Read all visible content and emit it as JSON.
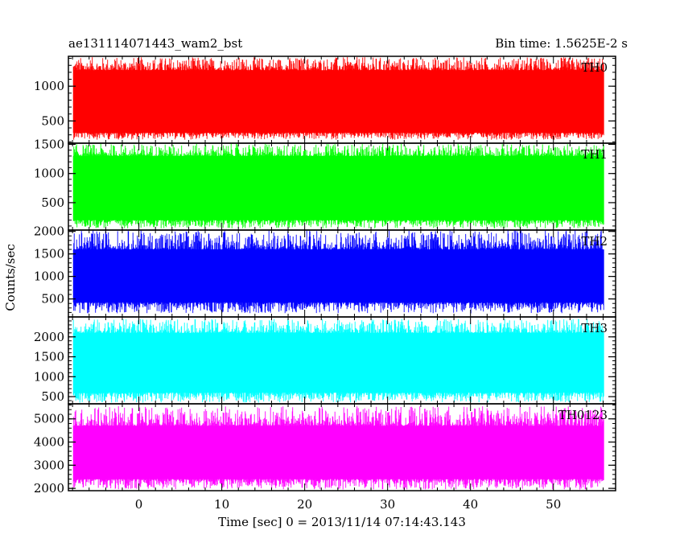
{
  "header": {
    "left": "ae131114071443_wam2_bst",
    "right": "Bin time: 1.5625E-2 s"
  },
  "chart_data": {
    "type": "line",
    "title": "ae131114071443_wam2_bst",
    "subtitle": "Bin time: 1.5625E-2 s",
    "xlabel": "Time [sec] 0 = 2013/11/14 07:14:43.143",
    "ylabel": "Counts/sec",
    "xlim": [
      -8.5,
      57.5
    ],
    "x_data_range": [
      -7.9,
      56.1
    ],
    "bin_time_s": 0.015625,
    "x_ticks": [
      0,
      10,
      20,
      30,
      40,
      50
    ],
    "grid": false,
    "legend": "none",
    "panels": [
      {
        "name": "TH0",
        "color": "#ff0000",
        "ylim": [
          180,
          1430
        ],
        "y_ticks": [
          500,
          1000
        ],
        "mean": 780,
        "noise_range": [
          230,
          1420
        ],
        "typical_range": [
          330,
          1230
        ]
      },
      {
        "name": "TH1",
        "color": "#00ff00",
        "ylim": [
          30,
          1520
        ],
        "y_ticks": [
          500,
          1000,
          1500
        ],
        "mean": 710,
        "noise_range": [
          60,
          1510
        ],
        "typical_range": [
          200,
          1300
        ]
      },
      {
        "name": "TH2",
        "color": "#0000ff",
        "ylim": [
          100,
          2030
        ],
        "y_ticks": [
          500,
          1000,
          1500,
          2000
        ],
        "mean": 930,
        "noise_range": [
          180,
          2030
        ],
        "typical_range": [
          420,
          1600
        ]
      },
      {
        "name": "TH3",
        "color": "#00ffff",
        "ylim": [
          320,
          2500
        ],
        "y_ticks": [
          500,
          1000,
          1500,
          2000
        ],
        "mean": 1270,
        "noise_range": [
          350,
          2450
        ],
        "typical_range": [
          600,
          2100
        ]
      },
      {
        "name": "TH0123",
        "color": "#ff00ff",
        "ylim": [
          1900,
          5650
        ],
        "y_ticks": [
          2000,
          3000,
          4000,
          5000
        ],
        "mean": 3400,
        "noise_range": [
          1950,
          5550
        ],
        "typical_range": [
          2400,
          4700
        ]
      }
    ]
  }
}
